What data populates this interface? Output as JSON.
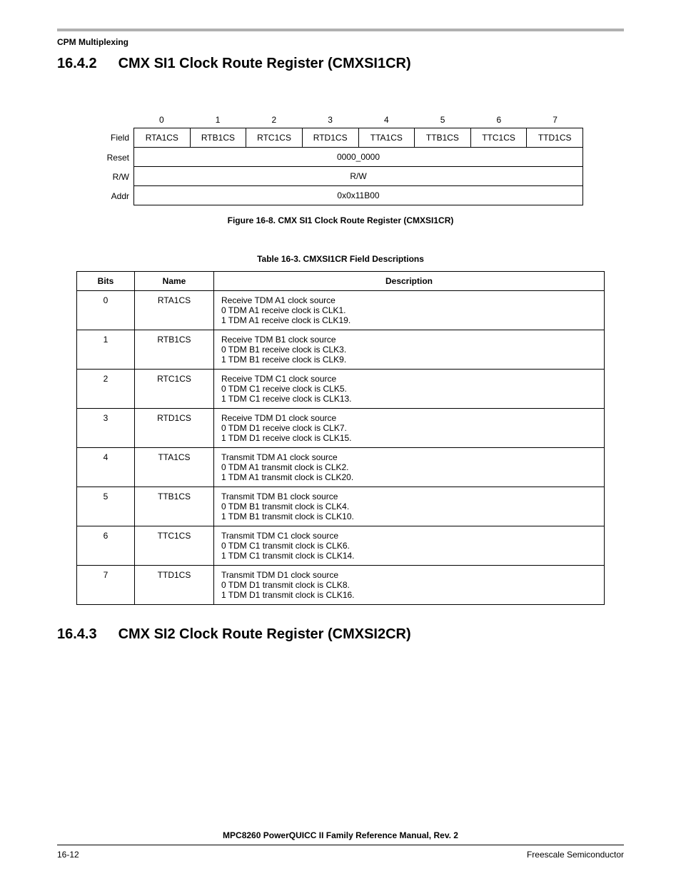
{
  "breadcrumb": "CPM Multiplexing",
  "section1": {
    "number": "16.4.2",
    "title": "CMX SI1 Clock Route Register (CMXSI1CR)"
  },
  "register": {
    "bit_numbers": [
      "0",
      "1",
      "2",
      "3",
      "4",
      "5",
      "6",
      "7"
    ],
    "row_labels": {
      "field": "Field",
      "reset": "Reset",
      "rw": "R/W",
      "addr": "Addr"
    },
    "fields": [
      "RTA1CS",
      "RTB1CS",
      "RTC1CS",
      "RTD1CS",
      "TTA1CS",
      "TTB1CS",
      "TTC1CS",
      "TTD1CS"
    ],
    "reset": "0000_0000",
    "rw": "R/W",
    "addr": "0x0x11B00"
  },
  "figure_caption": "Figure 16-8. CMX SI1 Clock Route Register (CMXSI1CR)",
  "table_caption": "Table 16-3. CMXSI1CR Field Descriptions",
  "table_headers": {
    "bits": "Bits",
    "name": "Name",
    "desc": "Description"
  },
  "rows": [
    {
      "bits": "0",
      "name": "RTA1CS",
      "l1": "Receive TDM A1 clock source",
      "l2": "0  TDM A1 receive clock is CLK1.",
      "l3": "1  TDM A1 receive clock is CLK19."
    },
    {
      "bits": "1",
      "name": "RTB1CS",
      "l1": "Receive TDM B1 clock source",
      "l2": "0  TDM B1 receive clock is CLK3.",
      "l3": "1  TDM B1 receive clock is CLK9."
    },
    {
      "bits": "2",
      "name": "RTC1CS",
      "l1": "Receive TDM C1 clock source",
      "l2": "0  TDM C1 receive clock is CLK5.",
      "l3": "1  TDM C1 receive clock is CLK13."
    },
    {
      "bits": "3",
      "name": "RTD1CS",
      "l1": "Receive TDM D1 clock source",
      "l2": "0  TDM D1 receive clock is CLK7.",
      "l3": "1  TDM D1 receive clock is CLK15."
    },
    {
      "bits": "4",
      "name": "TTA1CS",
      "l1": "Transmit TDM A1 clock source",
      "l2": "0  TDM A1 transmit clock is CLK2.",
      "l3": "1  TDM A1 transmit clock is CLK20."
    },
    {
      "bits": "5",
      "name": "TTB1CS",
      "l1": "Transmit TDM B1 clock source",
      "l2": "0  TDM B1 transmit clock is CLK4.",
      "l3": "1  TDM B1 transmit clock is CLK10."
    },
    {
      "bits": "6",
      "name": "TTC1CS",
      "l1": "Transmit TDM C1 clock source",
      "l2": "0  TDM C1 transmit clock is CLK6.",
      "l3": "1  TDM C1 transmit clock is CLK14."
    },
    {
      "bits": "7",
      "name": "TTD1CS",
      "l1": "Transmit TDM D1 clock source",
      "l2": "0  TDM D1 transmit clock is CLK8.",
      "l3": "1  TDM D1 transmit clock is CLK16."
    }
  ],
  "section2": {
    "number": "16.4.3",
    "title": "CMX SI2 Clock Route Register (CMXSI2CR)"
  },
  "footer": {
    "title": "MPC8260 PowerQUICC II Family Reference Manual, Rev. 2",
    "page": "16-12",
    "company": "Freescale Semiconductor"
  }
}
